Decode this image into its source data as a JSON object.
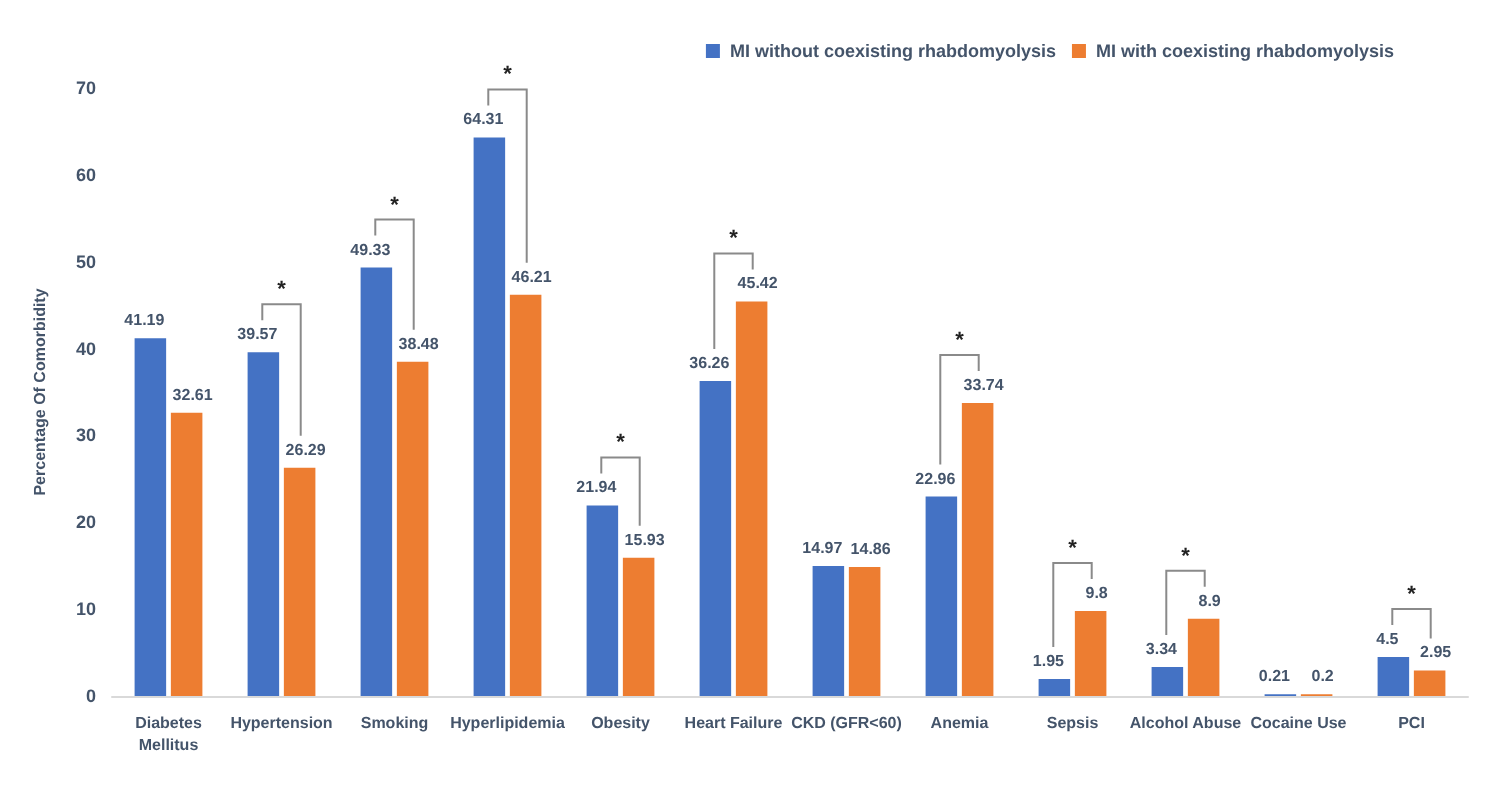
{
  "chart_data": {
    "type": "bar",
    "ylabel": "Percentage Of Comorbidity",
    "categories": [
      "Diabetes\nMellitus",
      "Hypertension",
      "Smoking",
      "Hyperlipidemia",
      "Obesity",
      "Heart Failure",
      "CKD (GFR<60)",
      "Anemia",
      "Sepsis",
      "Alcohol Abuse",
      "Cocaine Use",
      "PCI"
    ],
    "series": [
      {
        "name": "MI without coexisting rhabdomyolysis",
        "color": "#4472c4",
        "values": [
          41.19,
          39.57,
          49.33,
          64.31,
          21.94,
          36.26,
          14.97,
          22.96,
          1.95,
          3.34,
          0.21,
          4.5
        ]
      },
      {
        "name": "MI with coexisting rhabdomyolysis",
        "color": "#ed7d31",
        "values": [
          32.61,
          26.29,
          38.48,
          46.21,
          15.93,
          45.42,
          14.86,
          33.74,
          9.8,
          8.9,
          0.2,
          2.95
        ]
      }
    ],
    "ylim": [
      0,
      70
    ],
    "yticks": [
      0,
      10,
      20,
      30,
      40,
      50,
      60,
      70
    ],
    "grid": false,
    "legend": "top right",
    "data_labels": true,
    "annotations": [
      {
        "text": "*",
        "x": "Hypertension",
        "y": 39.57
      },
      {
        "text": "*",
        "x": "Smoking",
        "y": 49.33
      },
      {
        "text": "*",
        "x": "Hyperlipidemia",
        "y": 64.31
      },
      {
        "text": "*",
        "x": "Obesity",
        "y": 21.94
      },
      {
        "text": "*",
        "x": "Heart Failure",
        "y": 45.42
      },
      {
        "text": "*",
        "x": "Anemia",
        "y": 33.74
      },
      {
        "text": "*",
        "x": "Sepsis",
        "y": 9.8
      },
      {
        "text": "*",
        "x": "Alcohol Abuse",
        "y": 8.9
      },
      {
        "text": "*",
        "x": "PCI",
        "y": 4.5
      }
    ]
  }
}
